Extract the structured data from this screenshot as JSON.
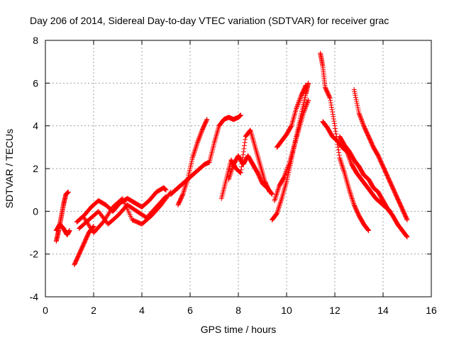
{
  "chart_data": {
    "type": "scatter",
    "title": "Day 206 of 2014, Sidereal Day-to-day VTEC variation (SDTVAR) for receiver grac",
    "xlabel": "GPS time / hours",
    "ylabel": "SDTVAR / TECUs",
    "xlim": [
      0,
      16
    ],
    "ylim": [
      -4,
      8
    ],
    "xticks": [
      0,
      2,
      4,
      6,
      8,
      10,
      12,
      14,
      16
    ],
    "yticks": [
      -4,
      -2,
      0,
      2,
      4,
      6,
      8
    ],
    "grid": true,
    "marker": "plus",
    "color": "#ff0000",
    "series": [
      {
        "name": "s1",
        "x": [
          0.45,
          0.55,
          0.65,
          0.75,
          0.85,
          0.95
        ],
        "y": [
          -1.4,
          -0.9,
          -0.3,
          0.3,
          0.8,
          0.9
        ]
      },
      {
        "name": "s2",
        "x": [
          0.45,
          0.6,
          0.75,
          0.9,
          1.0
        ],
        "y": [
          -0.9,
          -0.6,
          -0.8,
          -1.1,
          -0.9
        ]
      },
      {
        "name": "s3",
        "x": [
          1.2,
          1.4,
          1.6,
          1.8,
          2.0
        ],
        "y": [
          -2.5,
          -2.0,
          -1.5,
          -1.0,
          -0.7
        ]
      },
      {
        "name": "s4",
        "x": [
          1.3,
          1.6,
          1.9,
          2.2,
          2.5,
          2.8,
          3.1,
          3.4,
          3.7,
          4.0,
          4.3,
          4.6,
          4.9,
          5.0
        ],
        "y": [
          -0.5,
          -0.2,
          0.2,
          0.5,
          0.3,
          0.0,
          0.4,
          0.6,
          0.4,
          0.2,
          0.5,
          0.9,
          1.1,
          1.0
        ]
      },
      {
        "name": "s5",
        "x": [
          1.4,
          1.8,
          2.2,
          2.6,
          3.0,
          3.4,
          3.8,
          4.2,
          4.6,
          5.0
        ],
        "y": [
          -0.8,
          -0.4,
          0.0,
          -0.6,
          -0.2,
          0.3,
          0.0,
          -0.3,
          0.2,
          0.7
        ]
      },
      {
        "name": "s6",
        "x": [
          1.6,
          2.0,
          2.4,
          2.8,
          3.2,
          3.6,
          4.0,
          4.4,
          4.8,
          5.2
        ],
        "y": [
          -0.3,
          -1.0,
          -0.5,
          0.2,
          0.6,
          -0.4,
          -0.6,
          -0.2,
          0.3,
          0.9
        ]
      },
      {
        "name": "s7",
        "x": [
          5.2,
          5.4,
          5.6,
          5.8,
          6.0,
          6.2,
          6.4,
          6.6,
          6.8
        ],
        "y": [
          0.8,
          1.0,
          1.2,
          1.4,
          1.6,
          1.8,
          2.0,
          2.2,
          2.3
        ]
      },
      {
        "name": "s8",
        "x": [
          5.5,
          5.7,
          5.9,
          6.1,
          6.3,
          6.5,
          6.7
        ],
        "y": [
          0.3,
          0.8,
          1.5,
          2.5,
          3.2,
          3.8,
          4.3
        ]
      },
      {
        "name": "s9",
        "x": [
          6.8,
          7.0,
          7.2,
          7.4,
          7.6,
          7.8,
          8.0,
          8.1
        ],
        "y": [
          2.3,
          3.2,
          4.0,
          4.3,
          4.4,
          4.3,
          4.4,
          4.5
        ]
      },
      {
        "name": "s10",
        "x": [
          7.3,
          7.5,
          7.7,
          7.9,
          8.1,
          8.3,
          8.5,
          8.7,
          8.9,
          9.1,
          9.3
        ],
        "y": [
          0.6,
          1.5,
          2.4,
          2.0,
          1.8,
          3.5,
          3.8,
          3.0,
          2.2,
          1.4,
          0.9
        ]
      },
      {
        "name": "s11",
        "x": [
          7.6,
          7.8,
          8.0,
          8.2,
          8.4,
          8.6,
          8.8,
          9.0,
          9.2,
          9.4
        ],
        "y": [
          1.5,
          2.2,
          2.6,
          2.2,
          2.6,
          2.2,
          1.8,
          1.3,
          1.1,
          0.8
        ]
      },
      {
        "name": "s12",
        "x": [
          9.4,
          9.6,
          9.8,
          10.0,
          10.2,
          10.4,
          10.6,
          10.8,
          10.9
        ],
        "y": [
          -0.4,
          -0.1,
          0.6,
          1.4,
          2.4,
          3.5,
          4.5,
          5.5,
          6.0
        ]
      },
      {
        "name": "s13",
        "x": [
          9.5,
          9.7,
          9.9,
          10.1,
          10.3,
          10.5,
          10.7,
          10.9
        ],
        "y": [
          0.5,
          1.2,
          1.6,
          2.2,
          3.0,
          3.8,
          4.6,
          5.2
        ]
      },
      {
        "name": "s14",
        "x": [
          9.6,
          9.8,
          10.0,
          10.2,
          10.4,
          10.6,
          10.8
        ],
        "y": [
          3.0,
          3.3,
          3.6,
          4.0,
          4.8,
          5.4,
          5.9
        ]
      },
      {
        "name": "s15",
        "x": [
          11.4,
          11.5,
          11.6,
          11.8,
          12.0,
          12.2,
          12.4,
          12.6,
          12.8,
          13.0,
          13.2,
          13.4
        ],
        "y": [
          7.4,
          6.8,
          5.8,
          5.3,
          4.0,
          2.5,
          1.8,
          1.0,
          0.3,
          -0.2,
          -0.6,
          -0.9
        ]
      },
      {
        "name": "s16",
        "x": [
          11.5,
          11.7,
          11.9,
          12.1,
          12.3,
          12.5,
          12.7,
          12.9,
          13.1,
          13.3,
          13.5,
          13.7,
          13.9,
          14.1,
          14.3
        ],
        "y": [
          4.2,
          3.9,
          3.5,
          3.3,
          3.0,
          2.8,
          2.2,
          1.8,
          1.5,
          1.2,
          0.9,
          0.6,
          0.4,
          0.2,
          0.0
        ]
      },
      {
        "name": "s17",
        "x": [
          12.2,
          12.4,
          12.6,
          12.8,
          13.0,
          13.2,
          13.4,
          13.6,
          13.8,
          14.0,
          14.2,
          14.4,
          14.6,
          14.8,
          15.0
        ],
        "y": [
          3.5,
          3.1,
          2.8,
          2.4,
          2.1,
          1.7,
          1.5,
          1.1,
          0.9,
          0.5,
          0.1,
          -0.2,
          -0.6,
          -0.9,
          -1.2
        ]
      },
      {
        "name": "s18",
        "x": [
          12.8,
          13.0,
          13.2,
          13.4,
          13.6,
          13.8,
          14.0,
          14.2,
          14.4,
          14.6,
          14.8,
          15.0
        ],
        "y": [
          5.7,
          4.6,
          4.0,
          3.5,
          3.0,
          2.6,
          2.1,
          1.6,
          1.1,
          0.6,
          0.1,
          -0.4
        ]
      }
    ]
  }
}
